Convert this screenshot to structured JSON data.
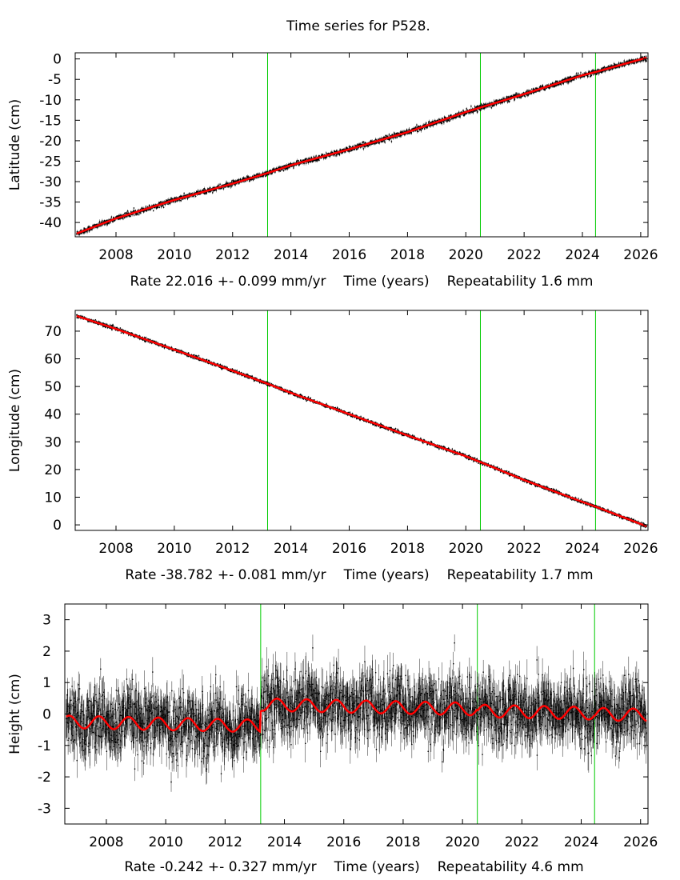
{
  "title": "Time series for P528.",
  "colors": {
    "data": "#000000",
    "model": "#ff0000",
    "offset_lines": "#00cc00"
  },
  "chart_data": [
    {
      "type": "scatter",
      "ylabel": "Latitude (cm)",
      "xlabel": "Time (years)",
      "rate_label": "Rate 22.016 +- 0.099 mm/yr",
      "repeat_label": "Repeatability 1.6 mm",
      "xlim": [
        2006.6,
        2026.25
      ],
      "ylim": [
        -43.5,
        1.5
      ],
      "xticks": [
        2008,
        2010,
        2012,
        2014,
        2016,
        2018,
        2020,
        2022,
        2024,
        2026
      ],
      "yticks": [
        0,
        -5,
        -10,
        -15,
        -20,
        -25,
        -30,
        -35,
        -40
      ],
      "offset_lines_x": [
        2013.2,
        2020.5,
        2024.45
      ],
      "series": [
        {
          "role": "data",
          "x": [
            2006.65,
            2008,
            2010,
            2012,
            2013.2,
            2014,
            2016,
            2018,
            2020,
            2020.5,
            2022,
            2024,
            2024.45,
            2026.2
          ],
          "y": [
            -42.7,
            -39.0,
            -34.5,
            -30.5,
            -27.9,
            -26.0,
            -22.1,
            -17.9,
            -13.0,
            -11.9,
            -8.6,
            -4.0,
            -3.2,
            0.3
          ],
          "noise": 0.3,
          "yerr": 0.35
        },
        {
          "role": "model",
          "x": [
            2006.65,
            2008,
            2010,
            2012,
            2013.2,
            2014,
            2016,
            2018,
            2020,
            2020.5,
            2022,
            2024,
            2024.45,
            2026.2
          ],
          "y": [
            -42.7,
            -39.0,
            -34.5,
            -30.5,
            -27.9,
            -26.0,
            -22.1,
            -17.9,
            -13.0,
            -11.9,
            -8.6,
            -4.0,
            -3.2,
            0.3
          ]
        }
      ]
    },
    {
      "type": "scatter",
      "ylabel": "Longitude (cm)",
      "xlabel": "Time (years)",
      "rate_label": "Rate -38.782 +- 0.081 mm/yr",
      "repeat_label": "Repeatability 1.7 mm",
      "xlim": [
        2006.6,
        2026.25
      ],
      "ylim": [
        -2,
        77.5
      ],
      "xticks": [
        2008,
        2010,
        2012,
        2014,
        2016,
        2018,
        2020,
        2022,
        2024,
        2026
      ],
      "yticks": [
        0,
        10,
        20,
        30,
        40,
        50,
        60,
        70
      ],
      "offset_lines_x": [
        2013.2,
        2020.5,
        2024.45
      ],
      "series": [
        {
          "role": "data",
          "x": [
            2006.65,
            2008,
            2010,
            2012,
            2013.2,
            2014,
            2016,
            2018,
            2020,
            2020.5,
            2022,
            2024,
            2024.45,
            2026.2
          ],
          "y": [
            75.5,
            70.8,
            63.3,
            55.7,
            51.0,
            47.7,
            40.0,
            32.3,
            24.8,
            22.7,
            16.2,
            8.3,
            6.6,
            -0.5
          ],
          "noise": 0.3,
          "yerr": 0.35
        },
        {
          "role": "model",
          "x": [
            2006.65,
            2008,
            2010,
            2012,
            2013.2,
            2014,
            2016,
            2018,
            2020,
            2020.5,
            2022,
            2024,
            2024.45,
            2026.2
          ],
          "y": [
            75.5,
            70.8,
            63.3,
            55.7,
            51.0,
            47.7,
            40.0,
            32.3,
            24.8,
            22.7,
            16.2,
            8.3,
            6.6,
            -0.5
          ]
        }
      ]
    },
    {
      "type": "scatter",
      "ylabel": "Height (cm)",
      "xlabel": "Time (years)",
      "rate_label": "Rate -0.242 +- 0.327 mm/yr",
      "repeat_label": "Repeatability 4.6 mm",
      "xlim": [
        2006.6,
        2026.25
      ],
      "ylim": [
        -3.5,
        3.5
      ],
      "xticks": [
        2008,
        2010,
        2012,
        2014,
        2016,
        2018,
        2020,
        2022,
        2024,
        2026
      ],
      "yticks": [
        3,
        2,
        1,
        0,
        -1,
        -2,
        -3
      ],
      "offset_lines_x": [
        2013.2,
        2020.5,
        2024.45
      ],
      "series": [
        {
          "role": "data",
          "x": [
            2006.65,
            2013.2,
            2013.21,
            2020.5,
            2026.2
          ],
          "y": [
            -0.25,
            -0.4,
            0.35,
            0.15,
            0.0
          ],
          "noise": 0.5,
          "yerr": 0.45
        },
        {
          "role": "model",
          "segments": [
            {
              "start": 2006.65,
              "end": 2013.2,
              "offset": -0.25,
              "slope": -0.02
            },
            {
              "start": 2013.2,
              "end": 2020.5,
              "offset": 0.3,
              "slope": -0.02
            },
            {
              "start": 2020.5,
              "end": 2024.45,
              "offset": 0.1,
              "slope": -0.02
            },
            {
              "start": 2024.45,
              "end": 2026.2,
              "offset": 0.0,
              "slope": -0.02
            }
          ],
          "amplitude": 0.2,
          "period_years": 1.0,
          "phase_years": 0.75
        }
      ]
    }
  ]
}
